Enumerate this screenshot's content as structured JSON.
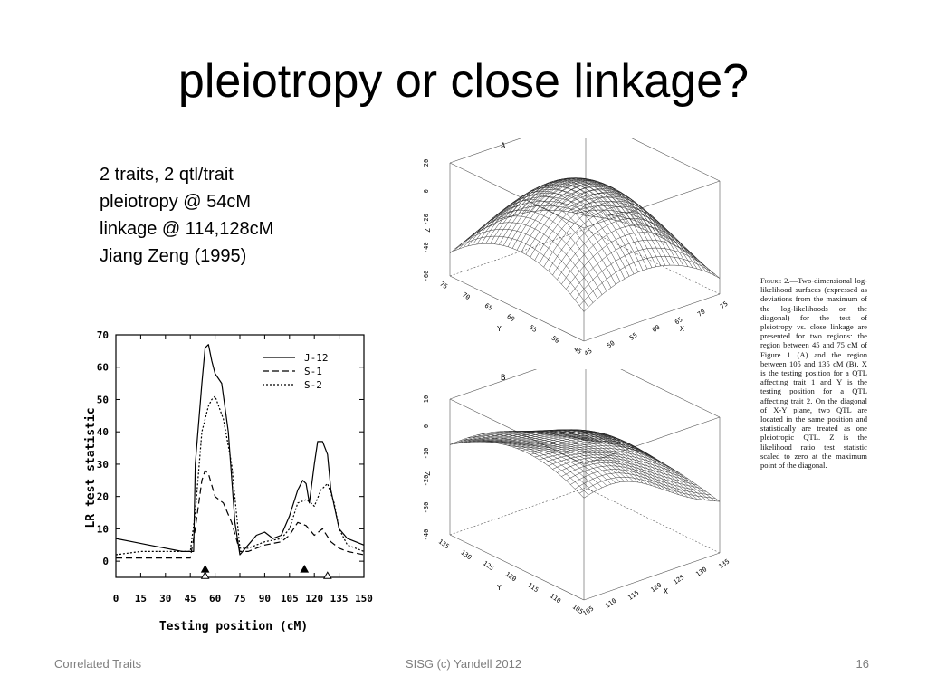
{
  "slide": {
    "title": "pleiotropy or close linkage?",
    "bullets": [
      "2 traits, 2 qtl/trait",
      "pleiotropy @ 54cM",
      "linkage @ 114,128cM",
      "Jiang Zeng (1995)"
    ],
    "footer": {
      "left": "Correlated Traits",
      "center": "SISG (c) Yandell 2012",
      "right": "16"
    }
  },
  "figure_caption": {
    "head": "Figure 2.",
    "body": "—Two-dimensional log-likelihood surfaces (expressed as deviations from the maximum of the log-likelihoods on the diagonal) for the test of pleiotropy vs. close linkage are presented for two regions: the region between 45 and 75 cM of Figure 1 (A) and the region between 105 and 135 cM (B). X is the testing position for a QTL affecting trait 1 and Y is the testing position for a QTL affecting trait 2. On the diagonal of X-Y plane, two QTL are located in the same position and statistically are treated as one pleiotropic QTL. Z is the likelihood ratio test statistic scaled to zero at the maximum point of the diagonal."
  },
  "surfaces": [
    {
      "label": "A",
      "z_label": "Z",
      "y_label": "Y",
      "x_label": "X",
      "z_ticks": [
        "20",
        "0",
        "-20",
        "-40",
        "-60"
      ],
      "y_ticks": [
        "75",
        "70",
        "65",
        "60",
        "55",
        "50",
        "45"
      ],
      "x_ticks": [
        "45",
        "50",
        "55",
        "60",
        "65",
        "70",
        "75"
      ]
    },
    {
      "label": "B",
      "z_label": "Z",
      "y_label": "Y",
      "x_label": "X",
      "z_ticks": [
        "10",
        "0",
        "-10",
        "-20",
        "-30",
        "-40"
      ],
      "y_ticks": [
        "135",
        "130",
        "125",
        "120",
        "115",
        "110",
        "105"
      ],
      "x_ticks": [
        "105",
        "110",
        "115",
        "120",
        "125",
        "130",
        "135"
      ]
    }
  ],
  "chart_data": {
    "type": "line",
    "title": "",
    "xlabel": "Testing position (cM)",
    "ylabel": "LR test statistic",
    "xlim": [
      0,
      150
    ],
    "ylim": [
      -5,
      70
    ],
    "x_ticks": [
      0,
      15,
      30,
      45,
      60,
      75,
      90,
      105,
      120,
      135,
      150
    ],
    "y_ticks": [
      0,
      10,
      20,
      30,
      40,
      50,
      60,
      70
    ],
    "grid": false,
    "legend": "top-right",
    "series": [
      {
        "name": "J-12",
        "style": "solid",
        "x": [
          0,
          10,
          20,
          30,
          40,
          47,
          48,
          52,
          54,
          56,
          58,
          60,
          64,
          68,
          72,
          75,
          80,
          85,
          90,
          95,
          100,
          105,
          110,
          113,
          115,
          117,
          120,
          122,
          125,
          128,
          130,
          135,
          140,
          145,
          150
        ],
        "y": [
          7,
          6,
          5,
          4,
          3,
          3,
          30,
          55,
          66,
          67,
          62,
          58,
          55,
          40,
          12,
          2,
          5,
          8,
          9,
          7,
          8,
          14,
          22,
          25,
          24,
          18,
          30,
          37,
          37,
          33,
          22,
          10,
          7,
          6,
          5
        ]
      },
      {
        "name": "S-1",
        "style": "dashed",
        "x": [
          0,
          15,
          30,
          45,
          48,
          52,
          54,
          56,
          60,
          65,
          70,
          75,
          80,
          90,
          100,
          105,
          110,
          115,
          120,
          125,
          130,
          135,
          140,
          150
        ],
        "y": [
          1,
          1,
          1,
          1,
          10,
          25,
          28,
          27,
          20,
          18,
          12,
          3,
          3,
          5,
          6,
          8,
          12,
          11,
          8,
          10,
          6,
          4,
          3,
          2
        ]
      },
      {
        "name": "S-2",
        "style": "dotted",
        "x": [
          0,
          15,
          30,
          45,
          48,
          52,
          56,
          58,
          60,
          65,
          70,
          75,
          80,
          90,
          100,
          105,
          110,
          115,
          118,
          120,
          124,
          128,
          132,
          135,
          140,
          150
        ],
        "y": [
          2,
          3,
          3,
          3,
          15,
          40,
          48,
          50,
          51,
          44,
          30,
          4,
          4,
          6,
          7,
          10,
          18,
          19,
          18,
          17,
          22,
          24,
          18,
          10,
          5,
          3
        ]
      }
    ],
    "markers": [
      {
        "type": "filled-triangle",
        "x": 54,
        "y": -2.5
      },
      {
        "type": "open-triangle",
        "x": 54,
        "y": -4.5
      },
      {
        "type": "filled-triangle",
        "x": 114,
        "y": -2.5
      },
      {
        "type": "open-triangle",
        "x": 128,
        "y": -4.5
      }
    ]
  }
}
